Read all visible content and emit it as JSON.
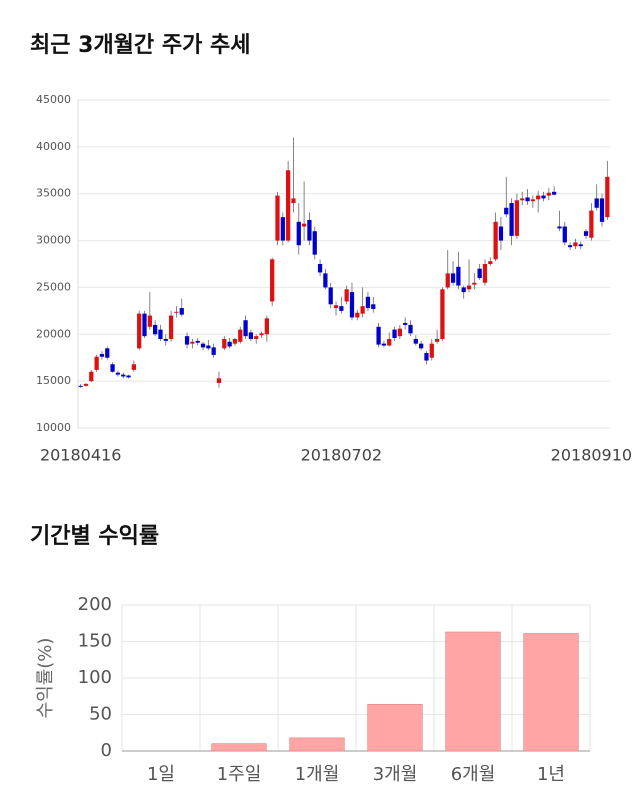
{
  "chart_data": [
    {
      "type": "candlestick",
      "title": "최근 3개월간 주가 추세",
      "categories": [
        "20180416",
        null,
        null,
        null,
        null,
        null,
        null,
        null,
        null,
        null,
        null,
        null,
        null,
        null,
        null,
        null,
        null,
        null,
        null,
        null,
        null,
        null,
        null,
        null,
        null,
        null,
        null,
        null,
        null,
        null,
        null,
        null,
        null,
        null,
        null,
        null,
        null,
        null,
        null,
        null,
        null,
        null,
        null,
        null,
        null,
        null,
        null,
        null,
        null,
        "20180702",
        null,
        null,
        null,
        null,
        null,
        null,
        null,
        null,
        null,
        null,
        null,
        null,
        null,
        null,
        null,
        null,
        null,
        null,
        null,
        null,
        null,
        null,
        null,
        null,
        null,
        null,
        null,
        null,
        null,
        null,
        null,
        null,
        null,
        null,
        null,
        null,
        null,
        null,
        null,
        null,
        null,
        null,
        null,
        null,
        null,
        null,
        "20180910",
        null,
        null,
        null
      ],
      "open": [
        14500,
        14500,
        15000,
        16200,
        17900,
        18500,
        16800,
        15900,
        15700,
        15600,
        16200,
        18500,
        22200,
        20800,
        21000,
        20500,
        19500,
        19500,
        22300,
        22800,
        19800,
        19000,
        19300,
        19000,
        18800,
        18600,
        14800,
        18500,
        19200,
        19000,
        19200,
        21500,
        20200,
        19500,
        19900,
        20000,
        23500,
        30000,
        32500,
        30000,
        34000,
        32000,
        31500,
        32200,
        31000,
        27500,
        26500,
        25000,
        22800,
        23000,
        23500,
        24500,
        21800,
        22200,
        24000,
        23200,
        20800,
        19000,
        18800,
        20500,
        19800,
        21200,
        21000,
        19500,
        19000,
        18000,
        17500,
        19200,
        19500,
        25000,
        26500,
        27200,
        25000,
        24800,
        25300,
        27000,
        25500,
        27500,
        28000,
        31500,
        33500,
        34000,
        30500,
        34300,
        34600,
        34200,
        34400,
        34800,
        34800,
        35200,
        31500,
        31500,
        29500,
        29400,
        29600,
        31000,
        30300,
        34500,
        34500,
        32500
      ],
      "high": [
        14700,
        14800,
        16200,
        17800,
        18200,
        18700,
        17000,
        16100,
        15900,
        15700,
        17200,
        22500,
        22500,
        24500,
        21500,
        21000,
        20000,
        22500,
        23000,
        23800,
        20200,
        19500,
        19600,
        19200,
        19400,
        19000,
        16000,
        19800,
        19600,
        19600,
        20800,
        22000,
        20500,
        20000,
        20300,
        22000,
        28200,
        35200,
        33000,
        38500,
        41000,
        34000,
        36300,
        33000,
        31500,
        28000,
        27000,
        25500,
        23500,
        24000,
        25200,
        25500,
        22600,
        25000,
        24500,
        24000,
        21200,
        19300,
        20200,
        20800,
        21000,
        21800,
        21500,
        19900,
        19300,
        18200,
        19500,
        20500,
        25000,
        29000,
        27800,
        28800,
        25200,
        28000,
        26500,
        27500,
        28000,
        28200,
        33000,
        32500,
        36800,
        34500,
        35000,
        35200,
        35500,
        34800,
        35300,
        35200,
        35600,
        35800,
        33200,
        32000,
        29800,
        30200,
        29900,
        31200,
        34000,
        36000,
        35000,
        38500
      ],
      "low": [
        14300,
        14400,
        14900,
        16000,
        17300,
        17300,
        15900,
        15500,
        15300,
        15300,
        16000,
        18300,
        19600,
        20500,
        19800,
        19300,
        18800,
        19200,
        21800,
        21900,
        18500,
        18500,
        18800,
        18300,
        18300,
        17500,
        14300,
        18300,
        18500,
        18800,
        19000,
        19500,
        19300,
        19000,
        19600,
        19200,
        23000,
        29500,
        29500,
        29800,
        33000,
        28500,
        30000,
        29500,
        28000,
        26200,
        24800,
        22800,
        22000,
        22200,
        23200,
        21500,
        21500,
        21800,
        22500,
        22300,
        18600,
        18600,
        18700,
        19300,
        19500,
        20500,
        19800,
        18800,
        18300,
        16800,
        17200,
        19000,
        19300,
        24800,
        25200,
        24800,
        23800,
        24500,
        24800,
        25800,
        25200,
        27300,
        27800,
        29000,
        32500,
        29500,
        30200,
        33800,
        33800,
        33500,
        33000,
        34200,
        34300,
        34800,
        31000,
        29500,
        29000,
        29100,
        29100,
        30200,
        30000,
        33200,
        31500,
        32200
      ],
      "close": [
        14400,
        14700,
        16000,
        17600,
        17600,
        17500,
        16000,
        15700,
        15500,
        15400,
        16800,
        22200,
        19800,
        22000,
        20000,
        19500,
        19300,
        22000,
        22400,
        22100,
        18900,
        19200,
        19100,
        18600,
        18500,
        17800,
        15300,
        19500,
        18700,
        19500,
        20500,
        19800,
        19500,
        19800,
        20100,
        21700,
        28000,
        34800,
        30000,
        37500,
        34500,
        29500,
        31800,
        30000,
        28500,
        26600,
        25000,
        23200,
        23100,
        22500,
        24800,
        21800,
        22300,
        23000,
        22800,
        22700,
        18900,
        18800,
        19500,
        19600,
        20600,
        21000,
        20100,
        19000,
        18500,
        17200,
        19000,
        19500,
        24800,
        26500,
        25500,
        25200,
        24500,
        25200,
        25500,
        26000,
        27500,
        27800,
        32000,
        30000,
        32800,
        30500,
        34300,
        34500,
        34200,
        34400,
        34800,
        34500,
        35100,
        34900,
        31300,
        29800,
        29300,
        29800,
        29400,
        30500,
        33200,
        33500,
        32000,
        36800
      ],
      "up_color": "#dd1111",
      "down_color": "#0000cc",
      "ylim": [
        10000,
        45000
      ],
      "yticks": [
        10000,
        15000,
        20000,
        25000,
        30000,
        35000,
        40000,
        45000
      ],
      "grid": true
    },
    {
      "type": "bar",
      "title": "기간별 수익률",
      "y_label": "수익률(%)",
      "categories": [
        "1일",
        "1주일",
        "1개월",
        "3개월",
        "6개월",
        "1년"
      ],
      "values": [
        0,
        10,
        18,
        64,
        163,
        161
      ],
      "color": "#ffa5a5",
      "ylim": [
        0,
        200
      ],
      "yticks": [
        0,
        50,
        100,
        150,
        200
      ],
      "grid": true
    }
  ]
}
